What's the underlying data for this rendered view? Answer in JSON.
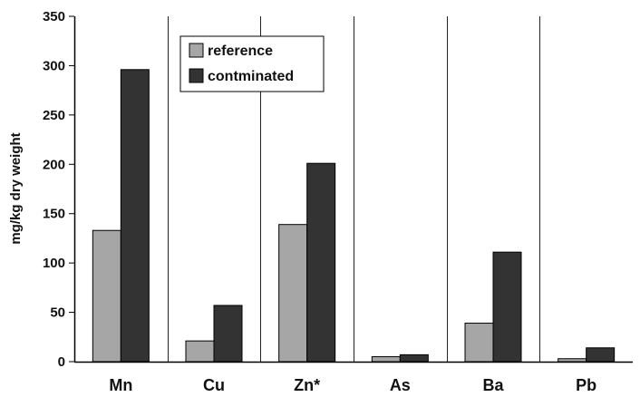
{
  "chart_data": {
    "type": "bar",
    "title": "",
    "xlabel": "",
    "ylabel": "mg/kg dry weight",
    "categories": [
      "Mn",
      "Cu",
      "Zn*",
      "As",
      "Ba",
      "Pb"
    ],
    "series": [
      {
        "name": "reference",
        "values": [
          133,
          21,
          139,
          5,
          39,
          3
        ],
        "color": "#a6a6a6"
      },
      {
        "name": "contminated",
        "values": [
          296,
          57,
          201,
          7,
          111,
          14
        ],
        "color": "#333333"
      }
    ],
    "ylim": [
      0,
      350
    ],
    "yticks": [
      0,
      50,
      100,
      150,
      200,
      250,
      300,
      350
    ],
    "grid": "vertical category dividers",
    "legend_position": "top-left inside plot"
  }
}
